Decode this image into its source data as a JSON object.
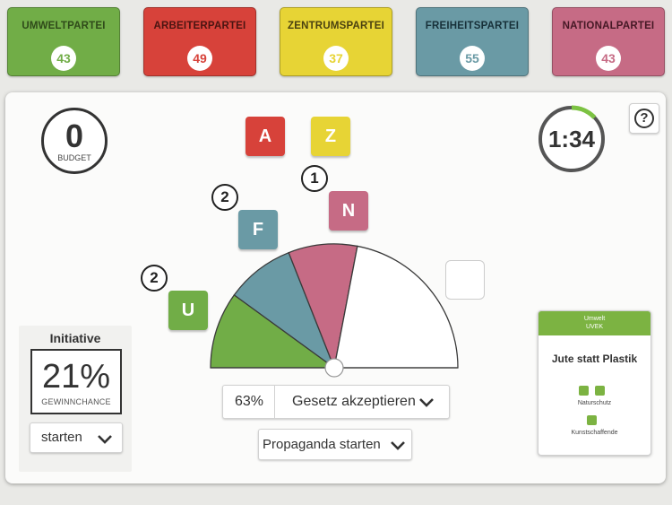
{
  "parties": [
    {
      "name": "UMWELTPARTEI",
      "count": "43",
      "color": "#71ad47",
      "text_color": "#2f4a1a"
    },
    {
      "name": "ARBEITERPARTEI",
      "count": "49",
      "color": "#d7423a",
      "text_color": "#4a1411"
    },
    {
      "name": "ZENTRUMSPARTEI",
      "count": "37",
      "color": "#e7d435",
      "text_color": "#4a4110"
    },
    {
      "name": "FREIHEITSPARTEI",
      "count": "55",
      "color": "#6a9aa5",
      "text_color": "#173039"
    },
    {
      "name": "NATIONALPARTEI",
      "count": "43",
      "color": "#c66b85",
      "text_color": "#451825"
    }
  ],
  "budget": {
    "value": "0",
    "label": "BUDGET"
  },
  "timer": {
    "value": "1:34",
    "remaining_fraction": 0.13
  },
  "help": {
    "label": "?"
  },
  "tiles": {
    "a": {
      "letter": "A",
      "color": "#d7423a"
    },
    "z": {
      "letter": "Z",
      "color": "#e7d435"
    },
    "n": {
      "letter": "N",
      "color": "#c66b85"
    },
    "f": {
      "letter": "F",
      "color": "#6a9aa5"
    },
    "u": {
      "letter": "U",
      "color": "#71ad47"
    }
  },
  "badges": {
    "n": "1",
    "f": "2",
    "u": "2"
  },
  "parliament": {
    "segments": [
      {
        "party": "Umweltpartei",
        "color": "#71ad47",
        "share": 0.2
      },
      {
        "party": "Freiheitspartei",
        "color": "#6a9aa5",
        "share": 0.18
      },
      {
        "party": "Nationalpartei",
        "color": "#c66b85",
        "share": 0.18
      },
      {
        "party": "frei",
        "color": "#ffffff",
        "share": 0.44
      }
    ]
  },
  "vote": {
    "percent": "63%",
    "action": "Gesetz akzeptieren"
  },
  "propaganda": {
    "label": "Propaganda starten"
  },
  "initiative": {
    "title": "Initiative",
    "percent": "21%",
    "label": "GEWINNCHANCE",
    "start_label": "starten"
  },
  "law_card": {
    "party": "Umwelt",
    "ministry": "UVEK",
    "title": "Jute statt Plastik",
    "groups": [
      {
        "label": "Naturschutz",
        "supporters": 2
      },
      {
        "label": "Kunstschaffende",
        "supporters": 1
      }
    ]
  }
}
